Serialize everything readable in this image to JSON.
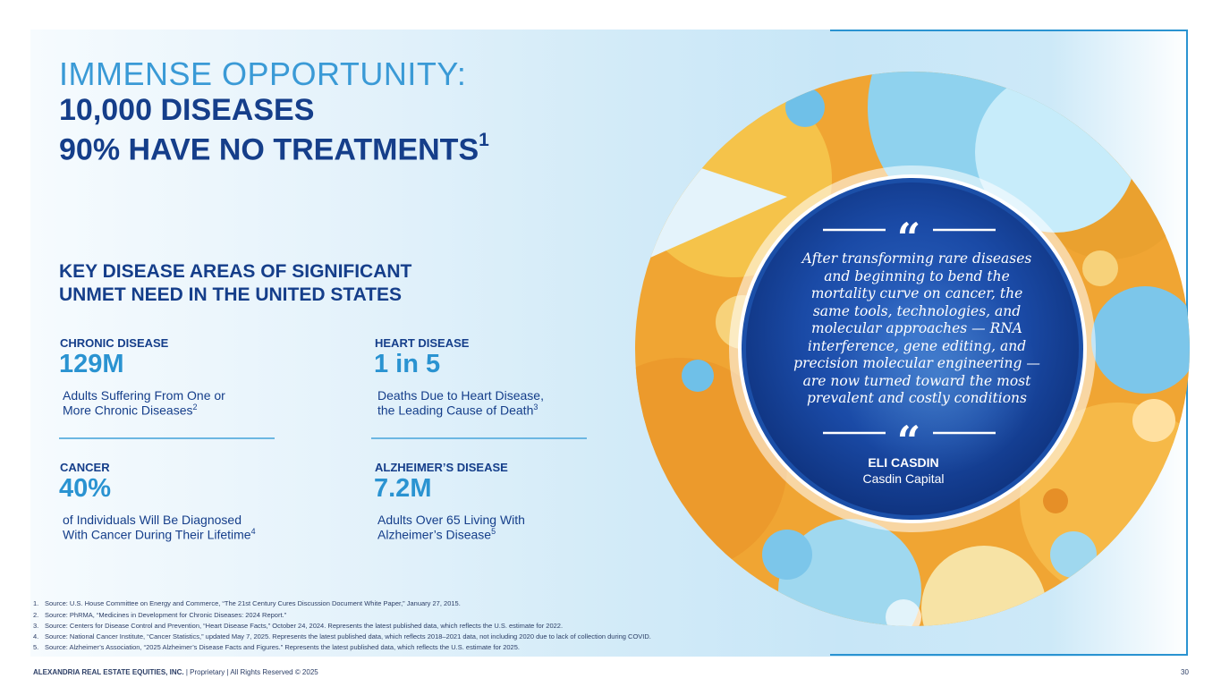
{
  "heading": {
    "line1": "IMMENSE OPPORTUNITY:",
    "line2": "10,000 DISEASES",
    "line3": "90% HAVE NO TREATMENTS",
    "line3_sup": "1"
  },
  "subheading": {
    "line1": "KEY DISEASE AREAS OF SIGNIFICANT",
    "line2": "UNMET NEED IN THE UNITED STATES"
  },
  "stats": [
    {
      "category": "CHRONIC DISEASE",
      "value": "129M",
      "desc1": "Adults Suffering From One or",
      "desc2": "More Chronic Diseases",
      "sup": "2"
    },
    {
      "category": "HEART DISEASE",
      "value": "1 in 5",
      "desc1": "Deaths Due to Heart Disease,",
      "desc2": "the Leading Cause of Death",
      "sup": "3"
    },
    {
      "category": "CANCER",
      "value": "40%",
      "desc1": "of Individuals Will Be Diagnosed",
      "desc2": "With Cancer During Their Lifetime",
      "sup": "4"
    },
    {
      "category": "ALZHEIMER’S DISEASE",
      "value": "7.2M",
      "desc1": "Adults Over 65 Living With",
      "desc2": "Alzheimer’s Disease",
      "sup": "5"
    }
  ],
  "quote": {
    "mark": "“",
    "lines": [
      "After transforming rare diseases",
      "and beginning to bend the",
      "mortality curve on cancer, the",
      "same tools, technologies, and",
      "molecular approaches — RNA",
      "interference, gene editing, and",
      "precision molecular engineering —",
      "are now turned toward the most",
      "prevalent and costly conditions"
    ],
    "name": "ELI CASDIN",
    "org": "Casdin Capital"
  },
  "footnotes": [
    {
      "num": "1.",
      "text": "Source: U.S. House Committee on Energy and Commerce, “The 21st Century Cures Discussion Document White Paper,” January 27, 2015."
    },
    {
      "num": "2.",
      "text": "Source: PhRMA, “Medicines in Development for Chronic Diseases: 2024 Report.”"
    },
    {
      "num": "3.",
      "text": "Source: Centers for Disease Control and Prevention, “Heart Disease Facts,” October 24, 2024. Represents the latest published data, which reflects the U.S. estimate for 2022."
    },
    {
      "num": "4.",
      "text": "Source: National Cancer Institute, “Cancer Statistics,” updated May 7, 2025. Represents the latest published data, which reflects 2018–2021 data, not including 2020 due to lack of collection during COVID."
    },
    {
      "num": "5.",
      "text": "Source: Alzheimer’s Association, “2025 Alzheimer’s Disease Facts and Figures.” Represents the latest published data, which reflects the U.S. estimate for 2025."
    }
  ],
  "footer": {
    "company": "ALEXANDRIA REAL ESTATE EQUITIES, INC.",
    "rights": " | Proprietary | All Rights Reserved © 2025",
    "page": "30"
  },
  "colors": {
    "navy": "#153e8a",
    "accent": "#2a93d1",
    "light_accent": "#3a9ad6"
  }
}
